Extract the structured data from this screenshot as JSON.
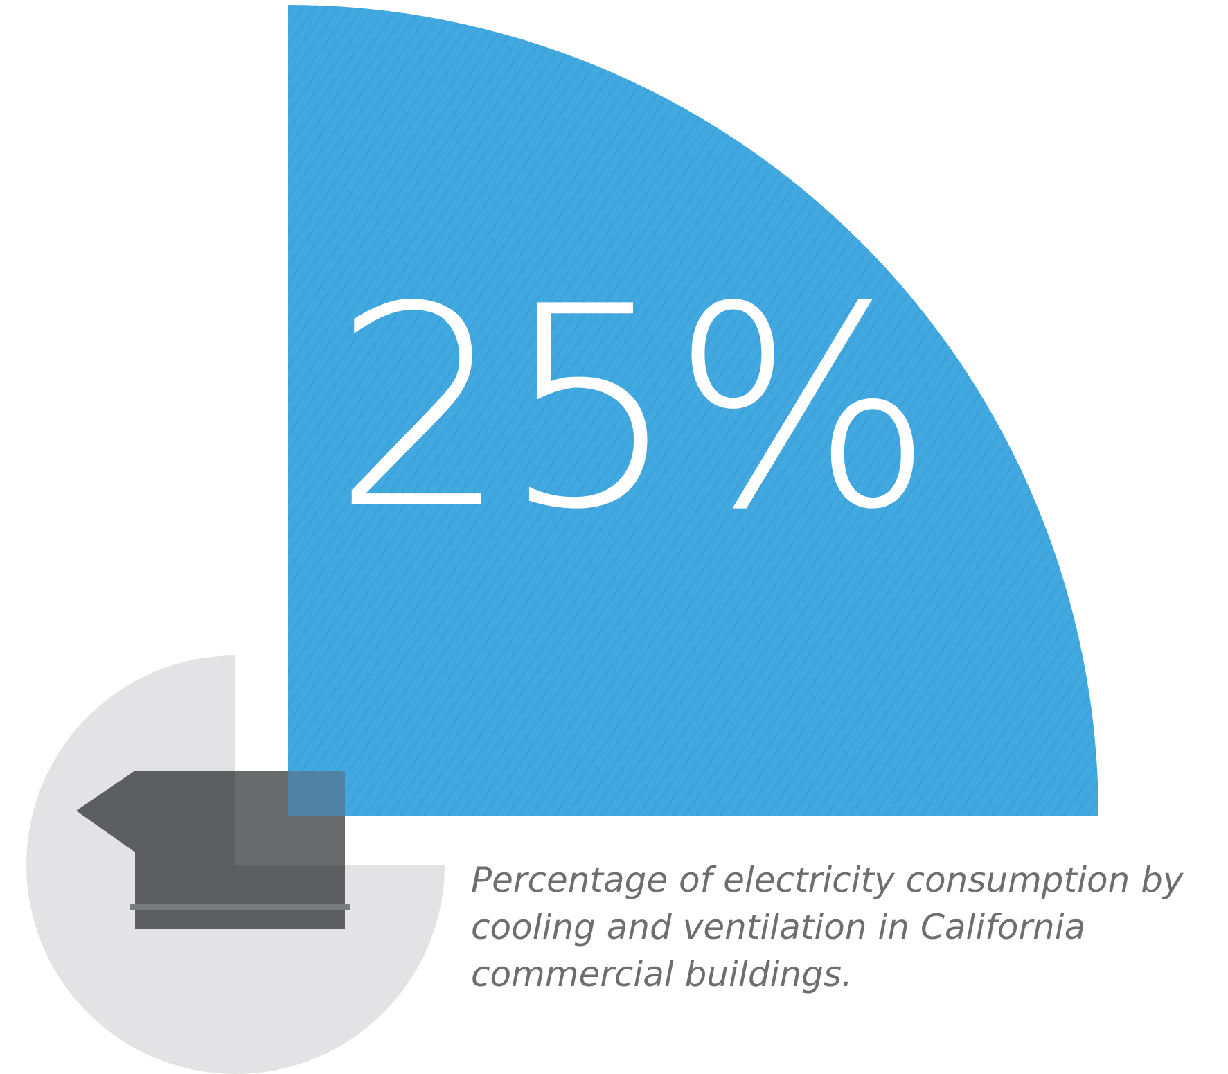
{
  "chart_data": {
    "type": "pie",
    "slices": [
      {
        "value": 25,
        "unit": "%",
        "color": "#42a8e0"
      }
    ],
    "stat_label": "25%",
    "caption_lines": [
      "Percentage of electricity consumption by",
      "cooling and ventilation in California",
      "commercial buildings."
    ]
  },
  "colors": {
    "slice": "#42a8e0",
    "slice_stripe": "#3a9ed6",
    "background_circle": "#e3e3e5",
    "icon": "#5d5e60",
    "icon_overlap": "#6a6b6d",
    "caption": "#6e6e70",
    "stat_text": "#ffffff"
  },
  "icon": {
    "name": "exhaust-fan-icon"
  }
}
